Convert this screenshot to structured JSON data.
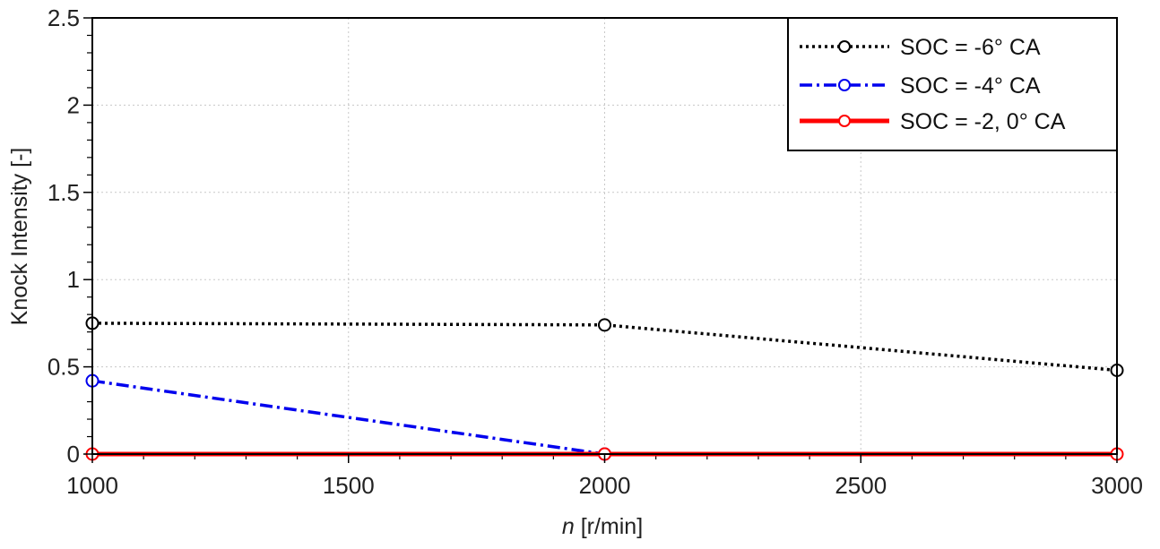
{
  "chart_data": {
    "type": "line",
    "xlabel_var": "n",
    "xlabel_unit": " [r/min]",
    "ylabel": "Knock Intensity [-]",
    "xlim": [
      1000,
      3000
    ],
    "ylim": [
      0,
      2.5
    ],
    "x_ticks": [
      "1000",
      "1500",
      "2000",
      "2500",
      "3000"
    ],
    "y_ticks": [
      "0",
      "0.5",
      "1",
      "1.5",
      "2",
      "2.5"
    ],
    "grid": true,
    "legend_position": "top-right",
    "series": [
      {
        "name": "SOC = -6° CA",
        "color": "#000000",
        "style": "dotted",
        "x": [
          1000,
          2000,
          3000
        ],
        "y": [
          0.75,
          0.74,
          0.48
        ]
      },
      {
        "name": "SOC = -4° CA",
        "color": "#0000ee",
        "style": "dash-dot",
        "x": [
          1000,
          2000
        ],
        "y": [
          0.42,
          0.0
        ]
      },
      {
        "name": "SOC = -2, 0° CA",
        "color": "#ff0000",
        "style": "solid",
        "x": [
          1000,
          2000,
          3000
        ],
        "y": [
          0.0,
          0.0,
          0.0
        ]
      }
    ]
  }
}
